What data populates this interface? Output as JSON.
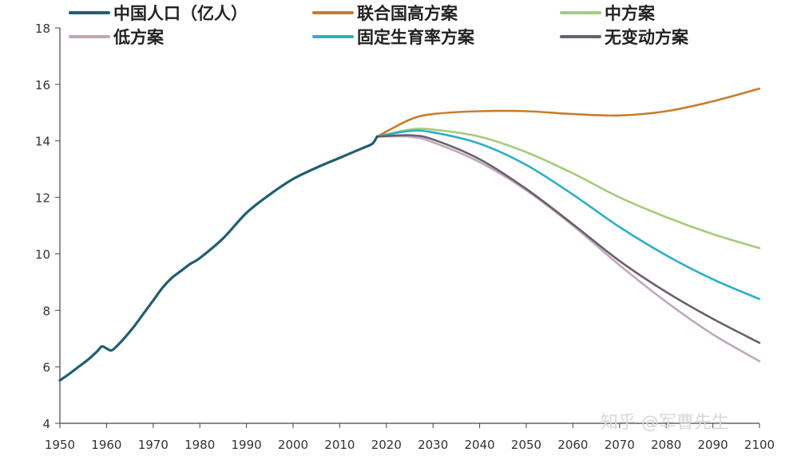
{
  "chart_data": {
    "type": "line",
    "title": "",
    "xlabel": "",
    "ylabel": "",
    "xlim": [
      1950,
      2100
    ],
    "ylim": [
      4,
      18
    ],
    "xticks": [
      1950,
      1960,
      1970,
      1980,
      1990,
      2000,
      2010,
      2020,
      2030,
      2040,
      2050,
      2060,
      2070,
      2080,
      2090,
      2100
    ],
    "yticks": [
      4,
      6,
      8,
      10,
      12,
      14,
      16,
      18
    ],
    "grid": false,
    "legend_position": "top",
    "series": [
      {
        "name": "中国人口（亿人）",
        "color": "#1f5f6f",
        "width": 3.2,
        "x": [
          1950,
          1952,
          1954,
          1956,
          1958,
          1959,
          1960,
          1961,
          1962,
          1964,
          1966,
          1968,
          1970,
          1972,
          1974,
          1976,
          1978,
          1980,
          1985,
          1990,
          1995,
          2000,
          2005,
          2010,
          2015,
          2017,
          2018
        ],
        "y": [
          5.52,
          5.75,
          6.0,
          6.25,
          6.55,
          6.72,
          6.65,
          6.58,
          6.7,
          7.05,
          7.45,
          7.9,
          8.35,
          8.8,
          9.15,
          9.4,
          9.65,
          9.85,
          10.55,
          11.45,
          12.1,
          12.65,
          13.05,
          13.4,
          13.75,
          13.9,
          14.15
        ]
      },
      {
        "name": "联合国高方案",
        "color": "#c77d2d",
        "width": 2.6,
        "x": [
          2018,
          2025,
          2030,
          2040,
          2050,
          2060,
          2070,
          2080,
          2090,
          2100
        ],
        "y": [
          14.15,
          14.75,
          14.95,
          15.05,
          15.05,
          14.95,
          14.9,
          15.05,
          15.4,
          15.85
        ]
      },
      {
        "name": "中方案",
        "color": "#a5cc7a",
        "width": 2.6,
        "x": [
          2018,
          2025,
          2030,
          2040,
          2050,
          2060,
          2070,
          2080,
          2090,
          2100
        ],
        "y": [
          14.15,
          14.4,
          14.4,
          14.15,
          13.6,
          12.85,
          12.0,
          11.3,
          10.7,
          10.2
        ]
      },
      {
        "name": "低方案",
        "color": "#c0a8bc",
        "width": 2.6,
        "x": [
          2018,
          2025,
          2030,
          2040,
          2050,
          2060,
          2070,
          2080,
          2090,
          2100
        ],
        "y": [
          14.15,
          14.15,
          13.95,
          13.25,
          12.25,
          11.0,
          9.6,
          8.3,
          7.15,
          6.2
        ]
      },
      {
        "name": "固定生育率方案",
        "color": "#2ab0c8",
        "width": 2.6,
        "x": [
          2018,
          2025,
          2030,
          2040,
          2050,
          2060,
          2070,
          2080,
          2090,
          2100
        ],
        "y": [
          14.15,
          14.35,
          14.3,
          13.9,
          13.15,
          12.1,
          10.95,
          9.95,
          9.1,
          8.4
        ]
      },
      {
        "name": "无变动方案",
        "color": "#6b5f6b",
        "width": 2.6,
        "x": [
          2018,
          2025,
          2030,
          2040,
          2050,
          2060,
          2070,
          2080,
          2090,
          2100
        ],
        "y": [
          14.15,
          14.2,
          14.05,
          13.35,
          12.3,
          11.05,
          9.75,
          8.65,
          7.7,
          6.85
        ]
      }
    ],
    "watermark": "知乎 @军曹先生"
  }
}
